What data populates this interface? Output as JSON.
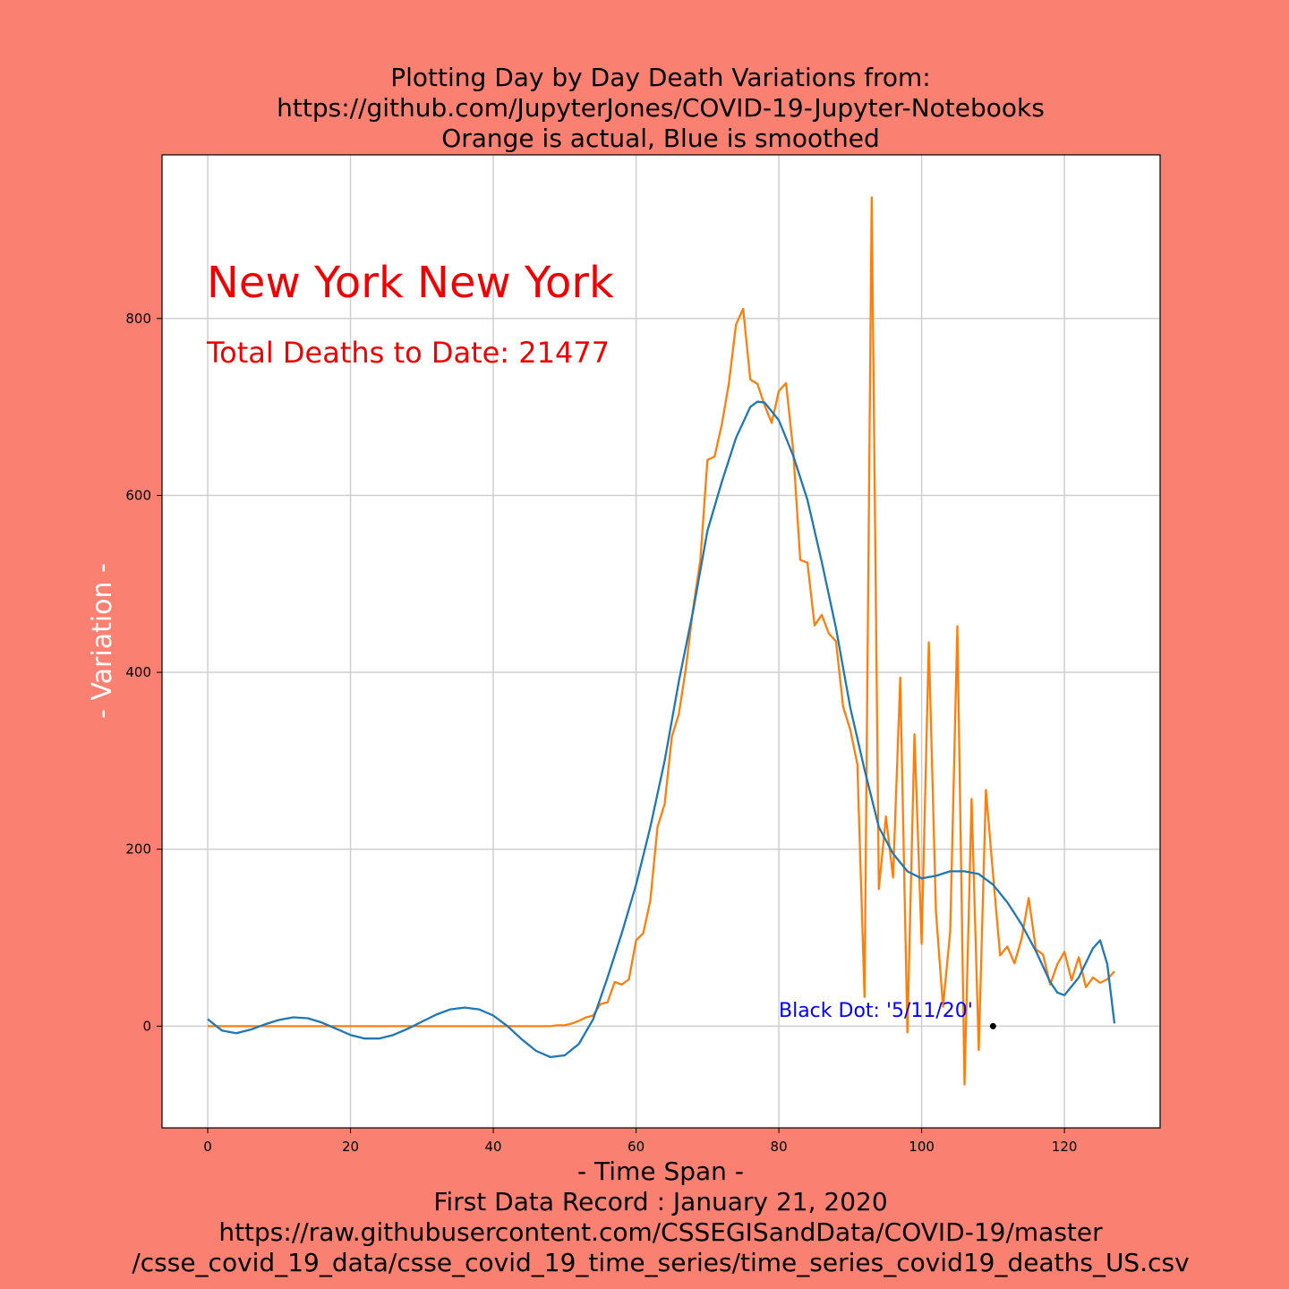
{
  "colors": {
    "background": "#fa8072",
    "plot_bg": "#ffffff",
    "grid": "#cccccc",
    "actual": "#ff7f0e",
    "smoothed": "#1f77b4",
    "region_text": "#ee0000",
    "annotation": "#0000ff",
    "ylabel": "#ffffff",
    "dot": "#000000"
  },
  "chart_data": {
    "type": "line",
    "title": [
      "Plotting Day by Day Death Variations from:",
      "https://github.com/JupyterJones/COVID-19-Jupyter-Notebooks",
      "Orange is actual, Blue is smoothed"
    ],
    "xlabel": [
      "- Time Span -",
      "First Data Record : January 21, 2020",
      "https://raw.githubusercontent.com/CSSEGISandData/COVID-19/master",
      "/csse_covid_19_data/csse_covid_19_time_series/time_series_covid19_deaths_US.csv"
    ],
    "ylabel": "- Variation -",
    "xlim": [
      -6.4,
      133.4
    ],
    "ylim": [
      -115,
      985
    ],
    "xticks": [
      0,
      20,
      40,
      60,
      80,
      100,
      120
    ],
    "yticks": [
      0,
      200,
      400,
      600,
      800
    ],
    "grid": true,
    "region_label": "New York New York",
    "total_label": "Total Deaths to Date: 21477",
    "annotation": "Black Dot:  '5/11/20'",
    "marker": {
      "x": 110,
      "y": 0
    },
    "series": [
      {
        "color": "actual",
        "x": [
          0,
          1,
          2,
          3,
          4,
          5,
          6,
          7,
          8,
          9,
          10,
          11,
          12,
          13,
          14,
          15,
          16,
          17,
          18,
          19,
          20,
          21,
          22,
          23,
          24,
          25,
          26,
          27,
          28,
          29,
          30,
          31,
          32,
          33,
          34,
          35,
          36,
          37,
          38,
          39,
          40,
          41,
          42,
          43,
          44,
          45,
          46,
          47,
          48,
          49,
          50,
          51,
          52,
          53,
          54,
          55,
          56,
          57,
          58,
          59,
          60,
          61,
          62,
          63,
          64,
          65,
          66,
          67,
          68,
          69,
          70,
          71,
          72,
          73,
          74,
          75,
          76,
          77,
          78,
          79,
          80,
          81,
          82,
          83,
          84,
          85,
          86,
          87,
          88,
          89,
          90,
          91,
          92,
          93,
          94,
          95,
          96,
          97,
          98,
          99,
          100,
          101,
          102,
          103,
          104,
          105,
          106,
          107,
          108,
          109,
          110,
          111,
          112,
          113,
          114,
          115,
          116,
          117,
          118,
          119,
          120,
          121,
          122,
          123,
          124,
          125,
          126,
          127
        ],
        "y": [
          0,
          0,
          0,
          0,
          0,
          0,
          0,
          0,
          0,
          0,
          0,
          0,
          0,
          0,
          0,
          0,
          0,
          0,
          0,
          0,
          0,
          0,
          0,
          0,
          0,
          0,
          0,
          0,
          0,
          0,
          0,
          0,
          0,
          0,
          0,
          0,
          0,
          0,
          0,
          0,
          0,
          0,
          0,
          0,
          0,
          0,
          0,
          0,
          0,
          1,
          1,
          3,
          6,
          10,
          12,
          25,
          27,
          50,
          47,
          53,
          97,
          105,
          142,
          225,
          251,
          327,
          353,
          406,
          473,
          527,
          640,
          644,
          680,
          727,
          793,
          811,
          731,
          726,
          702,
          682,
          718,
          727,
          651,
          527,
          524,
          453,
          465,
          444,
          435,
          361,
          335,
          296,
          33,
          937,
          155,
          237,
          168,
          394,
          -7,
          330,
          93,
          434,
          129,
          22,
          107,
          452,
          -66,
          257,
          -27,
          267,
          171,
          80,
          90,
          71,
          99,
          145,
          87,
          81,
          47,
          70,
          84,
          52,
          78,
          44,
          55,
          49,
          53,
          62
        ]
      },
      {
        "color": "smoothed",
        "x": [
          0,
          2,
          4,
          6,
          8,
          10,
          12,
          14,
          16,
          18,
          20,
          22,
          24,
          26,
          28,
          30,
          32,
          34,
          36,
          38,
          40,
          42,
          44,
          46,
          48,
          50,
          52,
          54,
          56,
          58,
          60,
          62,
          64,
          66,
          68,
          70,
          72,
          74,
          76,
          77,
          78,
          80,
          82,
          84,
          86,
          88,
          90,
          92,
          94,
          96,
          98,
          100,
          102,
          104,
          106,
          108,
          110,
          112,
          114,
          116,
          118,
          119,
          120,
          122,
          124,
          125,
          126,
          127
        ],
        "y": [
          8,
          -5,
          -8,
          -4,
          2,
          7,
          10,
          9,
          4,
          -3,
          -10,
          -14,
          -14,
          -10,
          -3,
          5,
          13,
          19,
          21,
          19,
          12,
          0,
          -15,
          -28,
          -35,
          -33,
          -20,
          8,
          55,
          105,
          160,
          225,
          300,
          390,
          470,
          560,
          615,
          665,
          700,
          706,
          705,
          685,
          645,
          595,
          525,
          450,
          360,
          290,
          225,
          195,
          175,
          167,
          170,
          175,
          175,
          172,
          160,
          140,
          115,
          85,
          50,
          38,
          35,
          55,
          88,
          97,
          70,
          3
        ]
      }
    ]
  }
}
